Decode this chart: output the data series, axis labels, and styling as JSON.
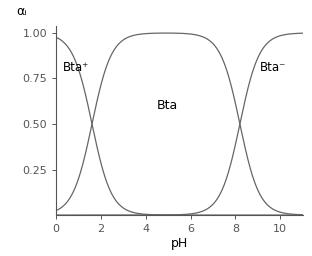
{
  "pka1": 1.6,
  "pka2": 8.2,
  "ph_min": 0,
  "ph_max": 11,
  "ylim": [
    0,
    1.04
  ],
  "yticks": [
    0.25,
    0.5,
    0.75,
    1.0
  ],
  "ytick_labels": [
    "0.25",
    "0.50",
    "0.75",
    "1.00"
  ],
  "xticks": [
    0,
    2,
    4,
    6,
    8,
    10
  ],
  "xlabel": "pH",
  "ylabel": "αᵢ",
  "label_Bta_plus": "Bta⁺",
  "label_Bta": "Bta",
  "label_Bta_minus": "Bta⁻",
  "line_color": "#666666",
  "background_color": "#ffffff",
  "label_fontsize": 8.5,
  "axis_label_fontsize": 9,
  "tick_fontsize": 8
}
